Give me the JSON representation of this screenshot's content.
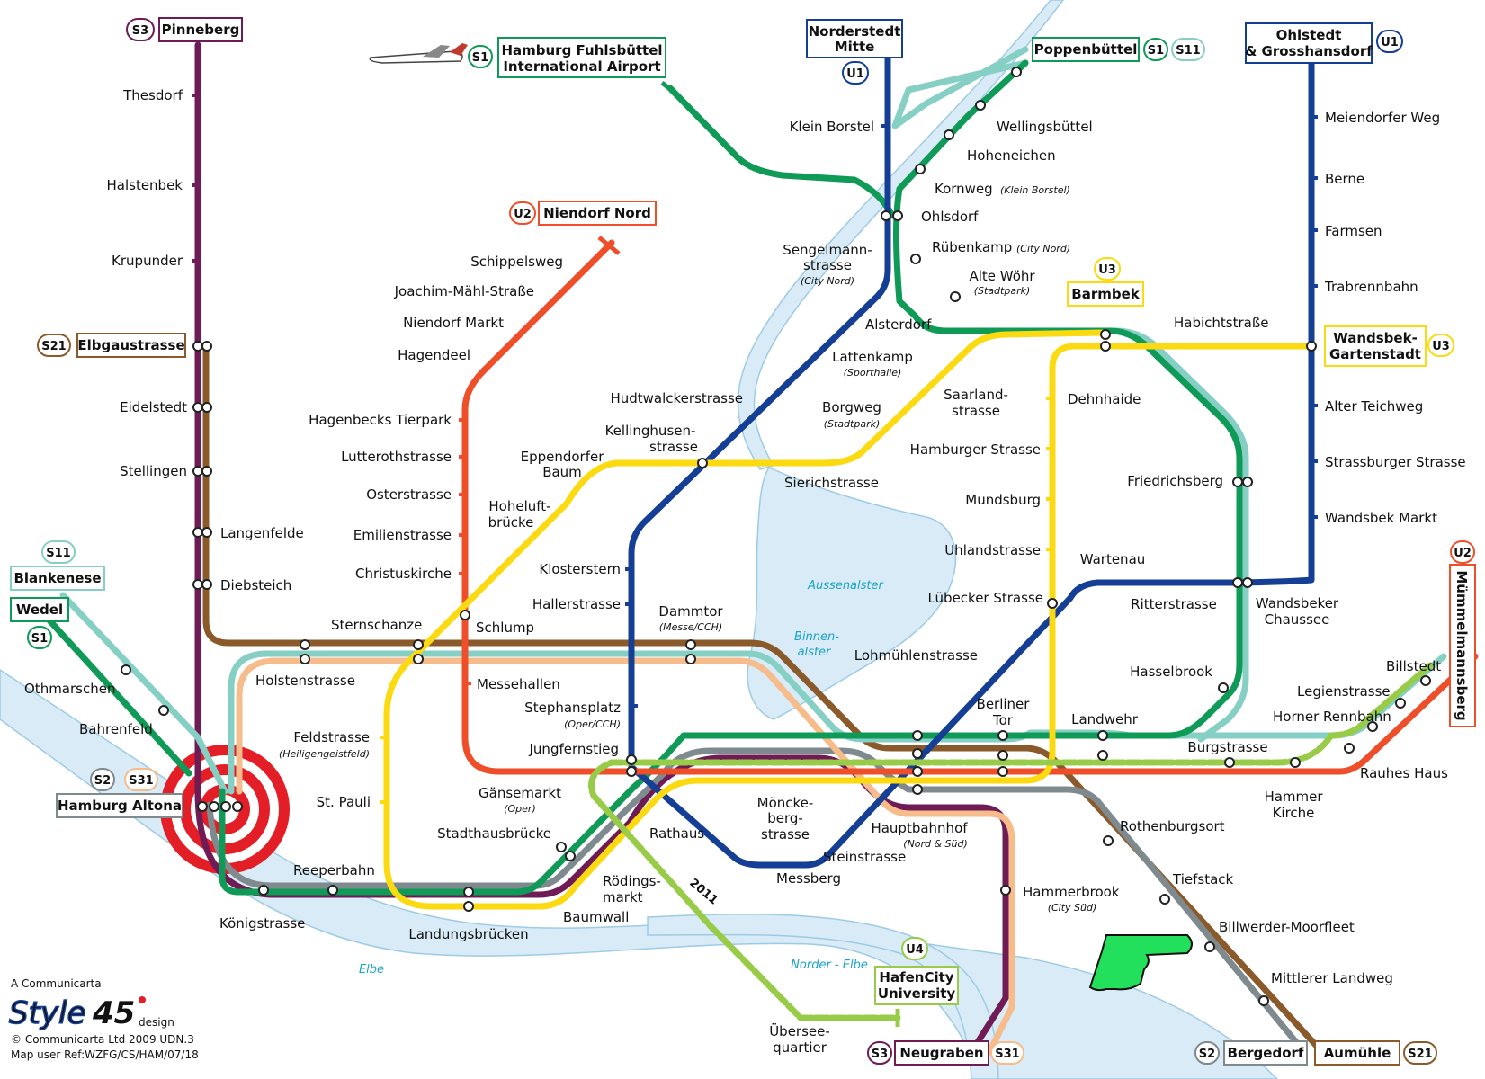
{
  "map": {
    "colors": {
      "water": "#d8ebf6",
      "waterEdge": "#9dcbe6",
      "S1": "#0f9a57",
      "S11": "#85cfc5",
      "S21": "#8b5a2b",
      "S3": "#6f1c56",
      "S31": "#f7bc8c",
      "S2": "#7f8a8e",
      "U1": "#143f95",
      "U2": "#ee4f2a",
      "U3": "#fbda12",
      "U4": "#98cc48",
      "altona": "#e41e26",
      "hand": "#22e05b"
    },
    "terminals": {
      "pinneberg": "Pinneberg",
      "airport_line1": "Hamburg Fuhlsbüttel",
      "airport_line2": "International Airport",
      "norderstedt_line1": "Norderstedt",
      "norderstedt_line2": "Mitte",
      "poppenbuettel": "Poppenbüttel",
      "ohlstedt_line1": "Ohlstedt",
      "ohlstedt_line2": "& Grosshansdorf",
      "niendorf_nord": "Niendorf Nord",
      "elbgaustrasse": "Elbgaustrasse",
      "barmbek": "Barmbek",
      "wandsbek_line1": "Wandsbek-",
      "wandsbek_line2": "Gartenstadt",
      "blankenese": "Blankenese",
      "wedel": "Wedel",
      "altona": "Hamburg Altona",
      "muemmelmannsberg": "Mümmelmannsberg",
      "hafencity_line1": "HafenCity",
      "hafencity_line2": "University",
      "neugraben": "Neugraben",
      "bergedorf": "Bergedorf",
      "aumuehle": "Aumühle"
    },
    "badges": {
      "s1": "S1",
      "s11": "S11",
      "s2": "S2",
      "s21": "S21",
      "s3": "S3",
      "s31": "S31",
      "u1": "U1",
      "u2": "U2",
      "u3": "U3",
      "u4": "U4"
    },
    "stations": {
      "thesdorf": "Thesdorf",
      "halstenbek": "Halstenbek",
      "krupunder": "Krupunder",
      "eidelstedt": "Eidelstedt",
      "stellingen": "Stellingen",
      "langenfelde": "Langenfelde",
      "diebsteich": "Diebsteich",
      "othmarschen": "Othmarschen",
      "bahrenfeld": "Bahrenfeld",
      "holstenstrasse": "Holstenstrasse",
      "sternschanze": "Sternschanze",
      "schlump": "Schlump",
      "messehallen": "Messehallen",
      "schippelsweg": "Schippelsweg",
      "joachim": "Joachim-Mähl-Straße",
      "niendorf_markt": "Niendorf Markt",
      "hagendeel": "Hagendeel",
      "hagenbecks": "Hagenbecks Tierpark",
      "lutterothstrasse": "Lutterothstrasse",
      "osterstrasse": "Osterstrasse",
      "emilienstrasse": "Emilienstrasse",
      "christuskirche": "Christuskirche",
      "klein_borstel": "Klein Borstel",
      "sengelmann_line1": "Sengelmann-",
      "sengelmann_line2": "strasse",
      "sengelmann_sub": "(City Nord)",
      "alsterdorf": "Alsterdorf",
      "lattenkamp": "Lattenkamp",
      "lattenkamp_sub": "(Sporthalle)",
      "hudtwalcker": "Hudtwalckerstrasse",
      "kellinghusen_line1": "Kellinghusen-",
      "kellinghusen_line2": "strasse",
      "eppendorfer_line1": "Eppendorfer",
      "eppendorfer_line2": "Baum",
      "hoheluft_line1": "Hoheluft-",
      "hoheluft_line2": "brücke",
      "klosterstern": "Klosterstern",
      "hallerstrasse": "Hallerstrasse",
      "dammtor": "Dammtor",
      "dammtor_sub": "(Messe/CCH)",
      "stephansplatz": "Stephansplatz",
      "stephansplatz_sub": "(Oper/CCH)",
      "jungfernstieg": "Jungfernstieg",
      "gaensemarkt": "Gänsemarkt",
      "gaensemarkt_sub": "(Oper)",
      "stadthausbruecke": "Stadthausbrücke",
      "rathaus": "Rathaus",
      "feldstrasse": "Feldstrasse",
      "feldstrasse_sub": "(Heiligengeistfeld)",
      "st_pauli": "St. Pauli",
      "reeperbahn": "Reeperbahn",
      "koenigstrasse": "Königstrasse",
      "landungsbruecken": "Landungsbrücken",
      "baumwall": "Baumwall",
      "roedingsmarkt_line1": "Rödings-",
      "roedingsmarkt_line2": "markt",
      "moenckeberg_line1": "Möncke-",
      "moenckeberg_line2": "berg-",
      "moenckeberg_line3": "strasse",
      "steinstrasse": "Steinstrasse",
      "messberg": "Messberg",
      "hauptbahnhof": "Hauptbahnhof",
      "hauptbahnhof_sub": "(Nord & Süd)",
      "berliner_line1": "Berliner",
      "berliner_line2": "Tor",
      "wellingsbuettel": "Wellingsbüttel",
      "hoheneichen": "Hoheneichen",
      "kornweg": "Kornweg",
      "kornweg_sub": "(Klein Borstel)",
      "ohlsdorf": "Ohlsdorf",
      "ruebenkamp": "Rübenkamp",
      "ruebenkamp_sub": "(City Nord)",
      "alte_woehr": "Alte Wöhr",
      "alte_woehr_sub": "(Stadtpark)",
      "borgweg": "Borgweg",
      "borgweg_sub": "(Stadtpark)",
      "saarland_line1": "Saarland-",
      "saarland_line2": "strasse",
      "sierichstrasse": "Sierichstrasse",
      "dehnhaide": "Dehnhaide",
      "hamburger_strasse": "Hamburger Strasse",
      "mundsburg": "Mundsburg",
      "uhlandstrasse": "Uhlandstrasse",
      "luebecker": "Lübecker Strasse",
      "lohmuehlen": "Lohmühlenstrasse",
      "habichtstrasse": "Habichtstraße",
      "friedrichsberg": "Friedrichsberg",
      "wartenau": "Wartenau",
      "ritterstrasse": "Ritterstrasse",
      "wandsbeker_line1": "Wandsbeker",
      "wandsbeker_line2": "Chaussee",
      "hasselbrook": "Hasselbrook",
      "landwehr": "Landwehr",
      "meiendorfer": "Meiendorfer Weg",
      "berne": "Berne",
      "farmsen": "Farmsen",
      "trabrennbahn": "Trabrennbahn",
      "alter_teichweg": "Alter Teichweg",
      "strassburger": "Strassburger Strasse",
      "wandsbek_markt": "Wandsbek Markt",
      "billstedt": "Billstedt",
      "legienstrasse": "Legienstrasse",
      "horner": "Horner Rennbahn",
      "burgstrasse": "Burgstrasse",
      "rauhes_haus": "Rauhes Haus",
      "hammer_line1": "Hammer",
      "hammer_line2": "Kirche",
      "rothenburgsort": "Rothenburgsort",
      "tiefstack": "Tiefstack",
      "billwerder": "Billwerder-Moorfleet",
      "mittlerer": "Mittlerer Landweg",
      "hammerbrook": "Hammerbrook",
      "hammerbrook_sub": "(City Süd)",
      "uebersee_line1": "Übersee-",
      "uebersee_line2": "quartier"
    },
    "water": {
      "aussenalster": "Aussenalster",
      "binnen_line1": "Binnen-",
      "binnen_line2": "alster",
      "elbe": "Elbe",
      "norder_elbe": "Norder - Elbe"
    },
    "year_2011": "2011",
    "credits": {
      "line1": "A Communicarta",
      "logo_style": "Style",
      "logo_num": "45",
      "logo_design": "design",
      "copyright": "© Communicarta Ltd 2009 UDN.3",
      "ref": "Map user Ref:WZFG/CS/HAM/07/18"
    }
  }
}
